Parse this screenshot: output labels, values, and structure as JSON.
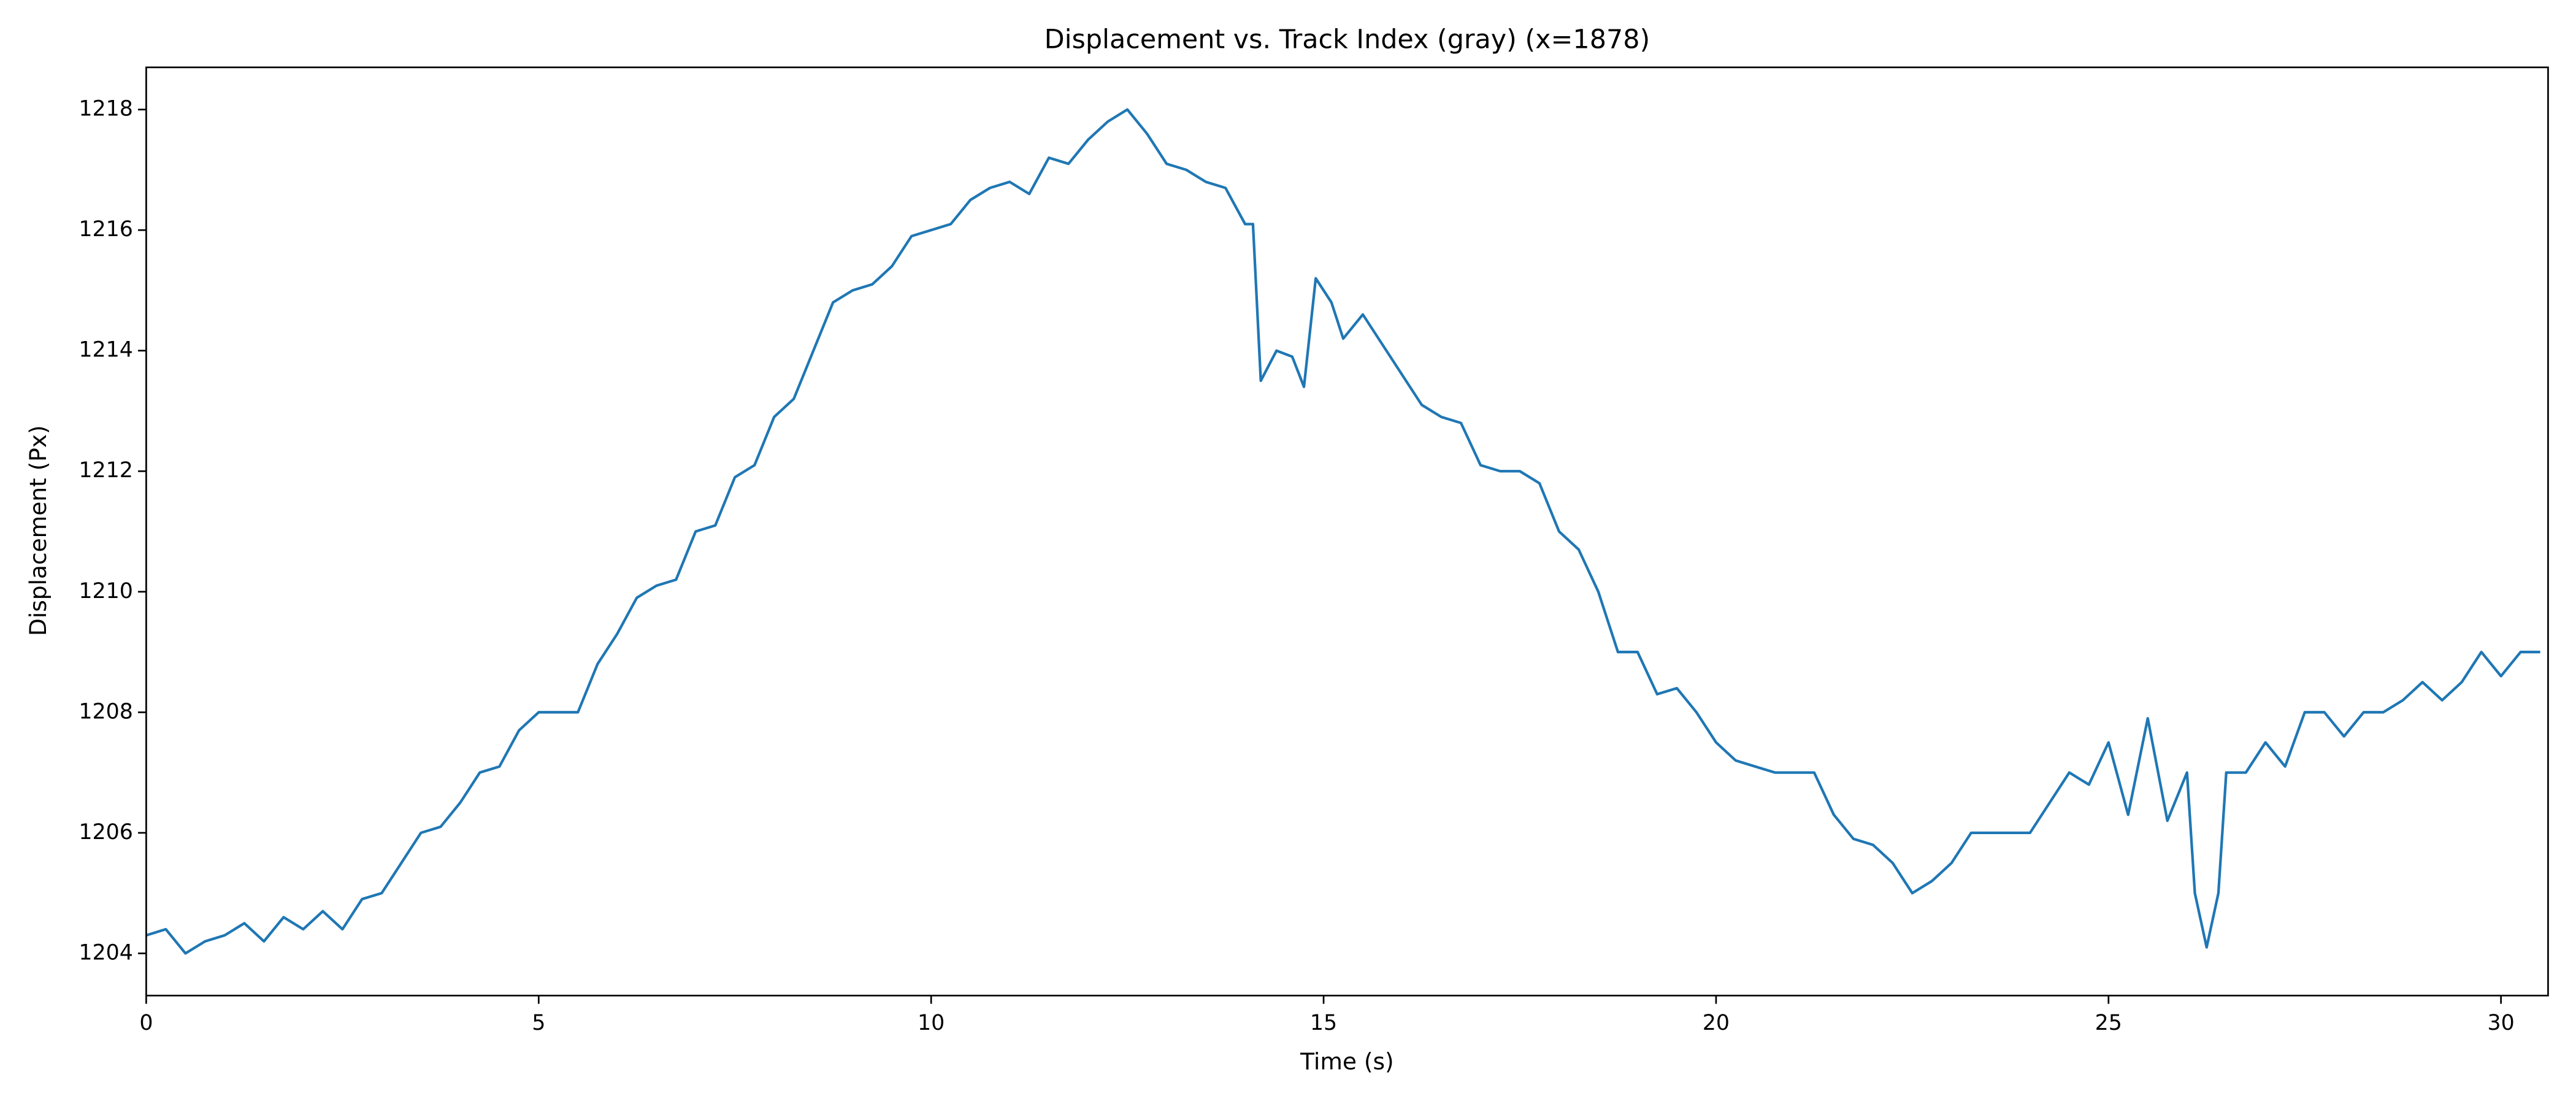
{
  "chart_data": {
    "type": "line",
    "title": "Displacement vs. Track Index (gray) (x=1878)",
    "x_label": "Time (s)",
    "y_label": "Displacement (Px)",
    "xlim": [
      0,
      30.6
    ],
    "ylim": [
      1203.3,
      1218.7
    ],
    "xticks": [
      0,
      5,
      10,
      15,
      20,
      25,
      30
    ],
    "yticks": [
      1204,
      1206,
      1208,
      1210,
      1212,
      1214,
      1216,
      1218
    ],
    "grid": false,
    "series": [
      {
        "color": "#1f77b4",
        "x": [
          0,
          0.25,
          0.5,
          0.75,
          1.0,
          1.25,
          1.5,
          1.75,
          2.0,
          2.25,
          2.5,
          2.75,
          3.0,
          3.25,
          3.5,
          3.75,
          4.0,
          4.25,
          4.5,
          4.75,
          5.0,
          5.25,
          5.5,
          5.75,
          6.0,
          6.25,
          6.5,
          6.75,
          7.0,
          7.25,
          7.5,
          7.75,
          8.0,
          8.25,
          8.5,
          8.75,
          9.0,
          9.25,
          9.5,
          9.75,
          10.0,
          10.25,
          10.5,
          10.75,
          11.0,
          11.25,
          11.5,
          11.75,
          12.0,
          12.25,
          12.5,
          12.75,
          13.0,
          13.25,
          13.5,
          13.75,
          14.0,
          14.1,
          14.2,
          14.4,
          14.6,
          14.75,
          14.9,
          15.1,
          15.25,
          15.5,
          15.75,
          16.0,
          16.25,
          16.5,
          16.75,
          17.0,
          17.25,
          17.5,
          17.75,
          18.0,
          18.25,
          18.5,
          18.75,
          19.0,
          19.25,
          19.5,
          19.75,
          20.0,
          20.25,
          20.5,
          20.75,
          21.0,
          21.25,
          21.5,
          21.75,
          22.0,
          22.25,
          22.5,
          22.75,
          23.0,
          23.25,
          23.5,
          23.75,
          24.0,
          24.25,
          24.5,
          24.75,
          25.0,
          25.25,
          25.5,
          25.75,
          26.0,
          26.1,
          26.25,
          26.4,
          26.5,
          26.75,
          27.0,
          27.25,
          27.5,
          27.75,
          28.0,
          28.25,
          28.5,
          28.75,
          29.0,
          29.25,
          29.5,
          29.75,
          30.0,
          30.25,
          30.5
        ],
        "values": [
          1204.3,
          1204.4,
          1204.0,
          1204.2,
          1204.3,
          1204.5,
          1204.2,
          1204.6,
          1204.4,
          1204.7,
          1204.4,
          1204.9,
          1205.0,
          1205.5,
          1206.0,
          1206.1,
          1206.5,
          1207.0,
          1207.1,
          1207.7,
          1208.0,
          1208.0,
          1208.0,
          1208.8,
          1209.3,
          1209.9,
          1210.1,
          1210.2,
          1211.0,
          1211.1,
          1211.9,
          1212.1,
          1212.9,
          1213.2,
          1214.0,
          1214.8,
          1215.0,
          1215.1,
          1215.4,
          1215.9,
          1216.0,
          1216.1,
          1216.5,
          1216.7,
          1216.8,
          1216.6,
          1217.2,
          1217.1,
          1217.5,
          1217.8,
          1218.0,
          1217.6,
          1217.1,
          1217.0,
          1216.8,
          1216.7,
          1216.1,
          1216.1,
          1213.5,
          1214.0,
          1213.9,
          1213.4,
          1215.2,
          1214.8,
          1214.2,
          1214.6,
          1214.1,
          1213.6,
          1213.1,
          1212.9,
          1212.8,
          1212.1,
          1212.0,
          1212.0,
          1211.8,
          1211.0,
          1210.7,
          1210.0,
          1209.0,
          1209.0,
          1208.3,
          1208.4,
          1208.0,
          1207.5,
          1207.2,
          1207.1,
          1207.0,
          1207.0,
          1207.0,
          1206.3,
          1205.9,
          1205.8,
          1205.5,
          1205.0,
          1205.2,
          1205.5,
          1206.0,
          1206.0,
          1206.0,
          1206.0,
          1206.5,
          1207.0,
          1206.8,
          1207.5,
          1206.3,
          1207.9,
          1206.2,
          1207.0,
          1205.0,
          1204.1,
          1205.0,
          1207.0,
          1207.0,
          1207.5,
          1207.1,
          1208.0,
          1208.0,
          1207.6,
          1208.0,
          1208.0,
          1208.2,
          1208.5,
          1208.2,
          1208.5,
          1209.0,
          1208.6,
          1209.0,
          1209.0
        ]
      }
    ]
  }
}
